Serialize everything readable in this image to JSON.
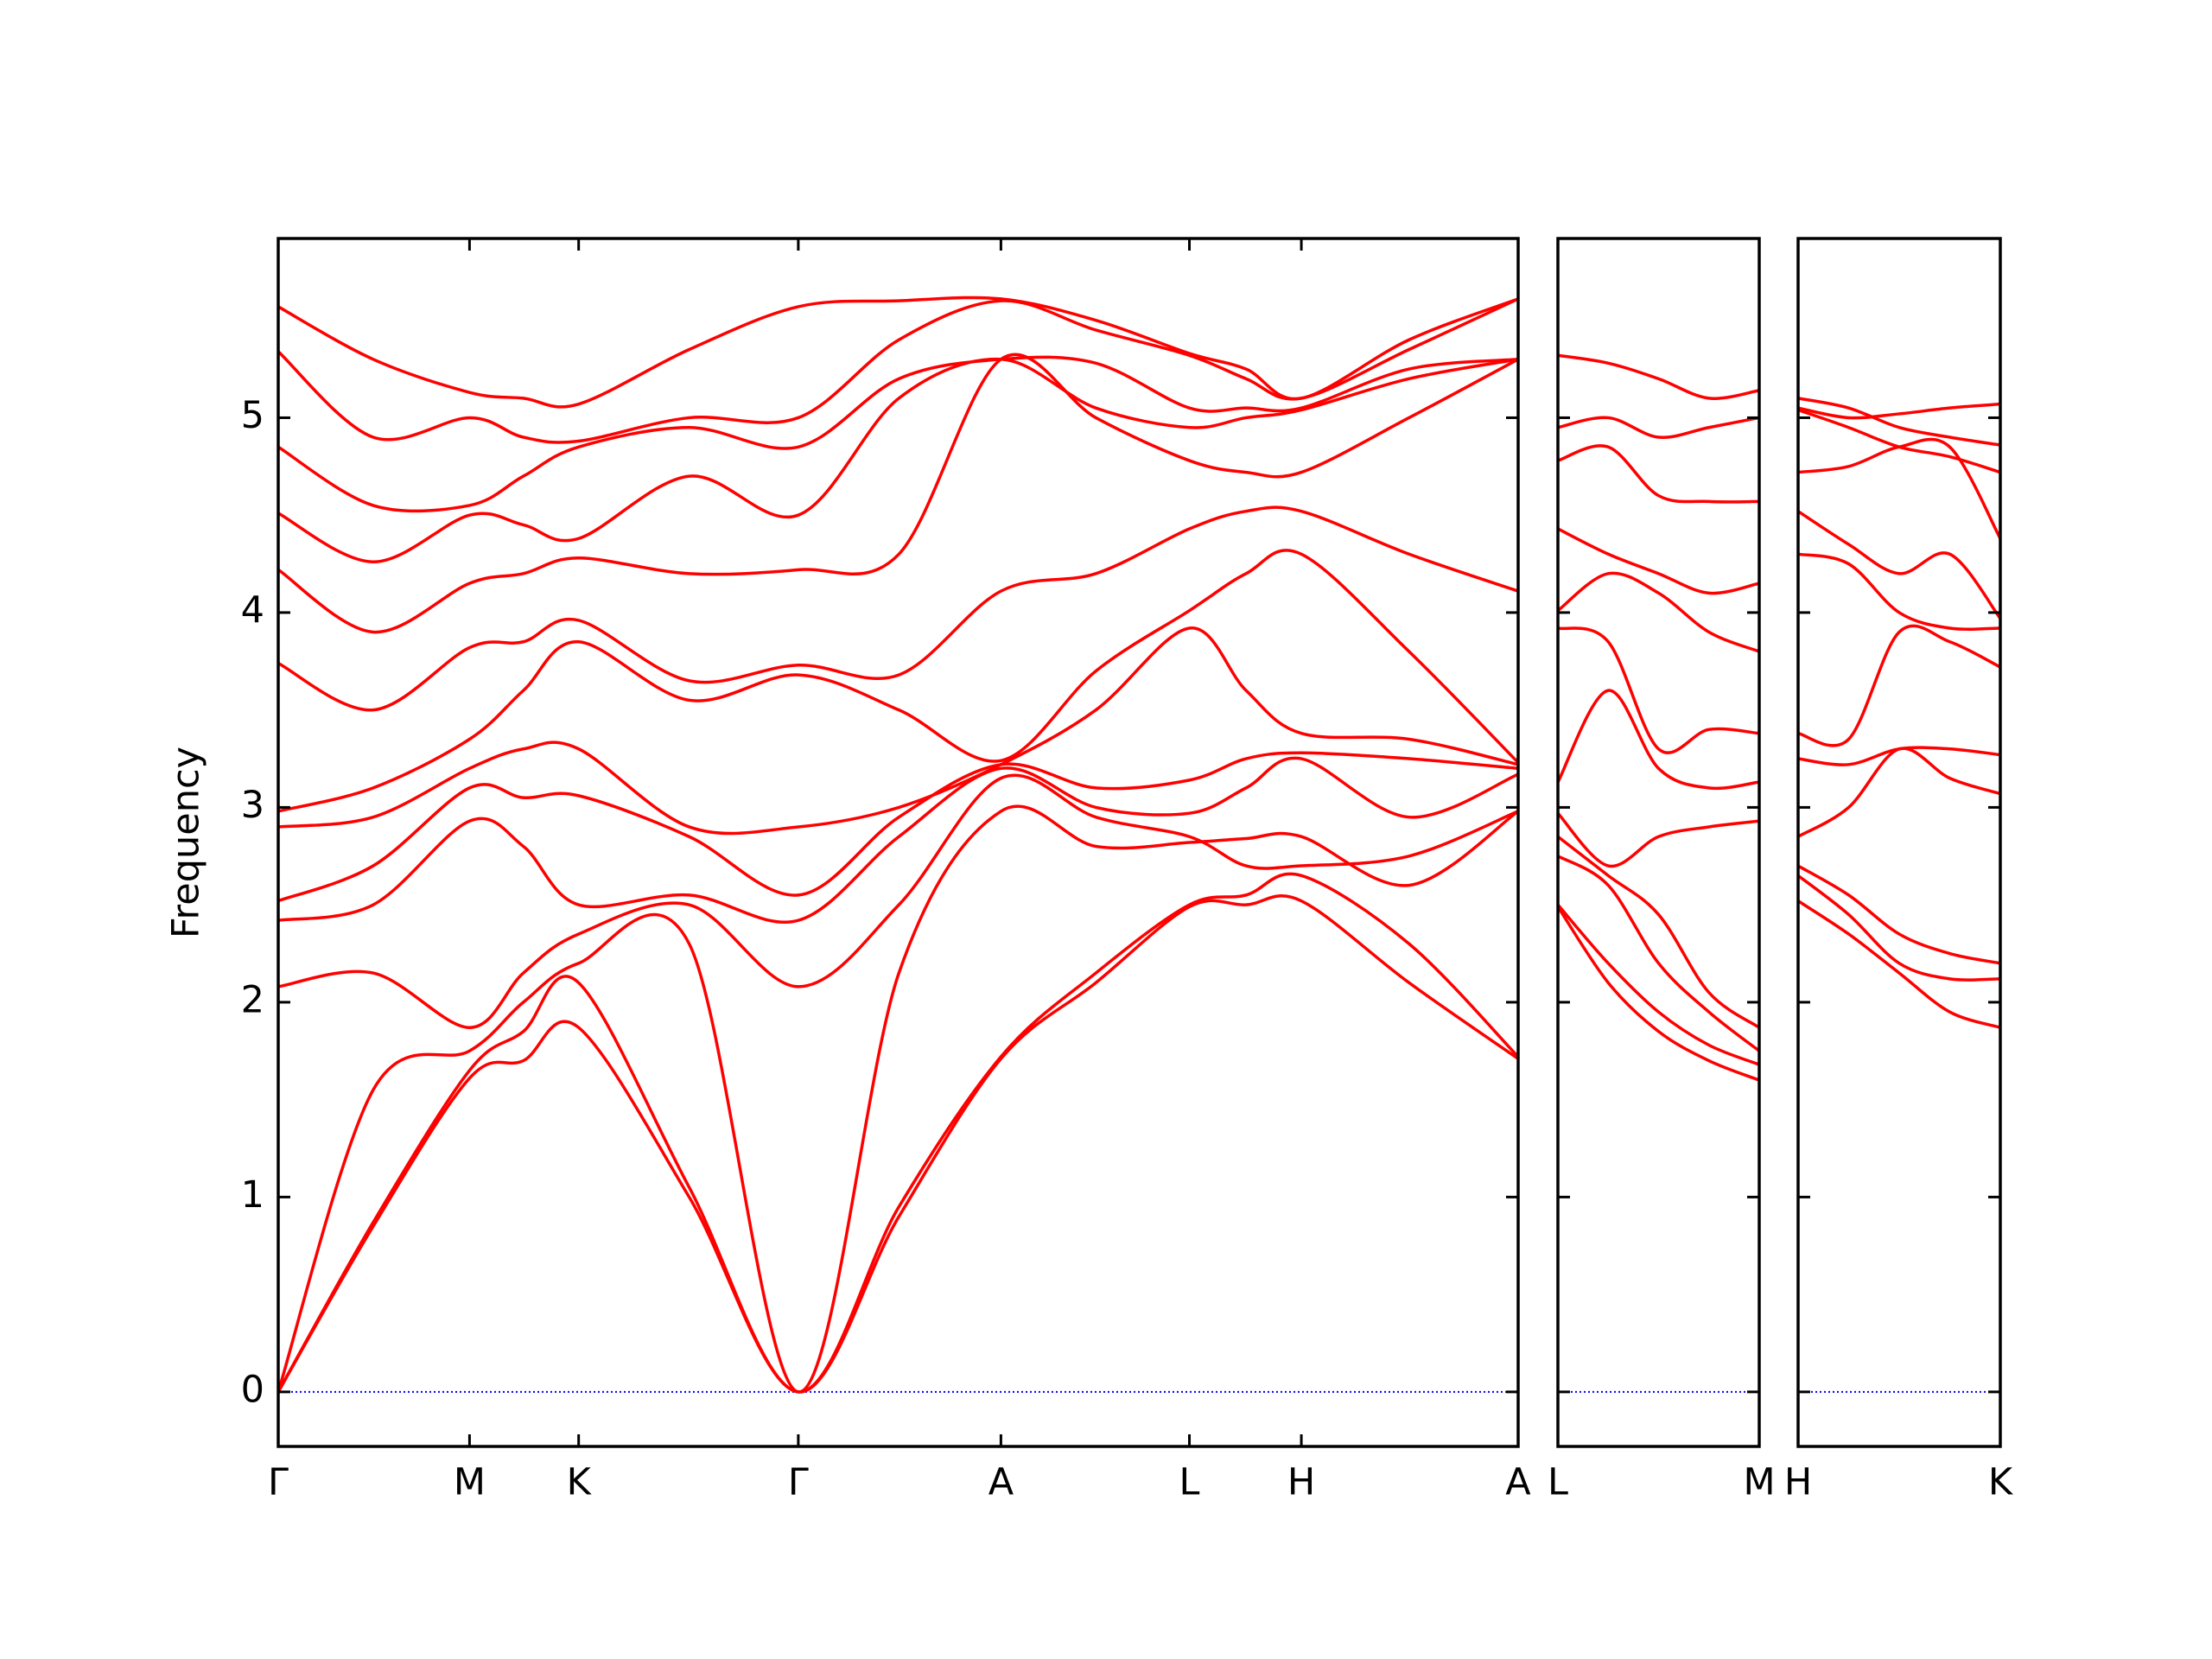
{
  "chart_data": [
    {
      "type": "line",
      "ylabel": "Frequency",
      "color": "#ff0000",
      "hline": 0,
      "hline_color": "#0000ff",
      "xlim": [
        0,
        8.75
      ],
      "ylim": [
        -0.28,
        5.92
      ],
      "yticks": [
        0,
        1,
        2,
        3,
        4,
        5
      ],
      "xticks": [
        {
          "value": 0,
          "label": "Γ"
        },
        {
          "value": 1.35,
          "label": "M"
        },
        {
          "value": 2.12,
          "label": "K"
        },
        {
          "value": 3.67,
          "label": "Γ"
        },
        {
          "value": 5.1,
          "label": "A"
        },
        {
          "value": 6.43,
          "label": "L"
        },
        {
          "value": 7.22,
          "label": "H"
        },
        {
          "value": 8.75,
          "label": "A"
        }
      ],
      "x": [
        0,
        0.67,
        1.35,
        1.73,
        2.12,
        2.9,
        3.67,
        4.38,
        5.1,
        5.77,
        6.43,
        6.83,
        7.22,
        7.98,
        8.75
      ],
      "series": [
        {
          "values": [
            0,
            0.85,
            1.61,
            1.7,
            1.87,
            1.0,
            0,
            0.9,
            1.71,
            2.1,
            2.49,
            2.5,
            2.52,
            2.1,
            1.71
          ]
        },
        {
          "values": [
            0,
            0.87,
            1.65,
            1.85,
            2.1,
            1.05,
            0,
            0.95,
            1.72,
            2.15,
            2.5,
            2.55,
            2.65,
            2.3,
            1.72
          ]
        },
        {
          "values": [
            0,
            1.55,
            1.75,
            2.0,
            2.2,
            2.3,
            0,
            2.15,
            2.98,
            2.8,
            2.82,
            2.84,
            2.85,
            2.6,
            2.98
          ]
        },
        {
          "values": [
            2.08,
            2.15,
            1.87,
            2.15,
            2.35,
            2.5,
            2.08,
            2.5,
            3.15,
            2.95,
            2.85,
            2.7,
            2.7,
            2.75,
            2.98
          ]
        },
        {
          "values": [
            2.42,
            2.5,
            2.93,
            2.8,
            2.5,
            2.55,
            2.42,
            2.85,
            3.2,
            3.0,
            2.97,
            3.1,
            3.25,
            2.95,
            3.17
          ]
        },
        {
          "values": [
            2.52,
            2.7,
            3.1,
            3.05,
            3.06,
            2.85,
            2.55,
            2.95,
            3.22,
            3.1,
            3.14,
            3.25,
            3.28,
            3.25,
            3.2
          ]
        },
        {
          "values": [
            2.9,
            2.95,
            3.2,
            3.3,
            3.3,
            2.9,
            2.9,
            3.0,
            3.22,
            3.5,
            3.92,
            3.6,
            3.38,
            3.35,
            3.22
          ]
        },
        {
          "values": [
            2.98,
            3.1,
            3.35,
            3.6,
            3.85,
            3.55,
            3.68,
            3.5,
            3.24,
            3.7,
            4.01,
            4.2,
            4.3,
            3.8,
            3.23
          ]
        },
        {
          "values": [
            3.74,
            3.5,
            3.82,
            3.85,
            3.96,
            3.65,
            3.73,
            3.68,
            4.11,
            4.2,
            4.43,
            4.52,
            4.52,
            4.3,
            4.11
          ]
        },
        {
          "values": [
            4.22,
            3.9,
            4.15,
            4.2,
            4.28,
            4.2,
            4.22,
            4.3,
            5.3,
            5.0,
            4.78,
            4.72,
            4.72,
            5.0,
            5.3
          ]
        },
        {
          "values": [
            4.51,
            4.26,
            4.5,
            4.45,
            4.38,
            4.7,
            4.5,
            5.1,
            5.3,
            5.05,
            4.95,
            5.0,
            5.04,
            5.2,
            5.3
          ]
        },
        {
          "values": [
            4.85,
            4.55,
            4.55,
            4.7,
            4.85,
            4.95,
            4.85,
            5.2,
            5.3,
            5.28,
            5.05,
            5.05,
            5.05,
            5.25,
            5.3
          ]
        },
        {
          "values": [
            5.34,
            4.9,
            5.0,
            4.9,
            4.88,
            5.0,
            5.0,
            5.4,
            5.6,
            5.45,
            5.32,
            5.2,
            5.1,
            5.35,
            5.61
          ]
        },
        {
          "values": [
            5.57,
            5.3,
            5.13,
            5.1,
            5.07,
            5.35,
            5.57,
            5.6,
            5.61,
            5.5,
            5.33,
            5.25,
            5.1,
            5.4,
            5.61
          ]
        }
      ]
    },
    {
      "type": "line",
      "color": "#ff0000",
      "hline": 0,
      "hline_color": "#0000ff",
      "xlim": [
        0,
        1.42
      ],
      "xticks": [
        {
          "value": 0,
          "label": "L"
        },
        {
          "value": 1.42,
          "label": "M"
        }
      ],
      "x": [
        0,
        0.355,
        0.71,
        1.065,
        1.42
      ],
      "series": [
        {
          "values": [
            2.49,
            2.1,
            1.85,
            1.7,
            1.6
          ]
        },
        {
          "values": [
            2.5,
            2.2,
            1.95,
            1.78,
            1.68
          ]
        },
        {
          "values": [
            2.75,
            2.6,
            2.2,
            1.95,
            1.75
          ]
        },
        {
          "values": [
            2.85,
            2.65,
            2.45,
            2.05,
            1.87
          ]
        },
        {
          "values": [
            2.97,
            2.7,
            2.85,
            2.9,
            2.93
          ]
        },
        {
          "values": [
            3.13,
            3.6,
            3.2,
            3.1,
            3.13
          ]
        },
        {
          "values": [
            3.92,
            3.85,
            3.3,
            3.4,
            3.38
          ]
        },
        {
          "values": [
            4.01,
            4.2,
            4.1,
            3.9,
            3.8
          ]
        },
        {
          "values": [
            4.43,
            4.3,
            4.2,
            4.1,
            4.15
          ]
        },
        {
          "values": [
            4.78,
            4.85,
            4.6,
            4.57,
            4.57
          ]
        },
        {
          "values": [
            4.95,
            5.0,
            4.9,
            4.95,
            5.0
          ]
        },
        {
          "values": [
            5.32,
            5.28,
            5.2,
            5.1,
            5.14
          ]
        }
      ]
    },
    {
      "type": "line",
      "color": "#ff0000",
      "hline": 0,
      "hline_color": "#0000ff",
      "xlim": [
        0,
        1.43
      ],
      "xticks": [
        {
          "value": 0,
          "label": "H"
        },
        {
          "value": 1.43,
          "label": "K"
        }
      ],
      "x": [
        0,
        0.3575,
        0.715,
        1.0725,
        1.43
      ],
      "series": [
        {
          "values": [
            2.52,
            2.35,
            2.15,
            1.95,
            1.87
          ]
        },
        {
          "values": [
            2.65,
            2.45,
            2.2,
            2.12,
            2.12
          ]
        },
        {
          "values": [
            2.7,
            2.55,
            2.35,
            2.25,
            2.2
          ]
        },
        {
          "values": [
            2.85,
            3.0,
            3.3,
            3.15,
            3.07
          ]
        },
        {
          "values": [
            3.25,
            3.22,
            3.3,
            3.3,
            3.27
          ]
        },
        {
          "values": [
            3.38,
            3.35,
            3.9,
            3.85,
            3.72
          ]
        },
        {
          "values": [
            4.3,
            4.25,
            4.0,
            3.92,
            3.92
          ]
        },
        {
          "values": [
            4.52,
            4.35,
            4.2,
            4.3,
            3.97
          ]
        },
        {
          "values": [
            4.72,
            4.75,
            4.85,
            4.85,
            4.38
          ]
        },
        {
          "values": [
            5.04,
            4.95,
            4.85,
            4.8,
            4.72
          ]
        },
        {
          "values": [
            5.1,
            5.05,
            4.95,
            4.9,
            4.86
          ]
        },
        {
          "values": [
            5.05,
            5.0,
            5.02,
            5.05,
            5.07
          ]
        }
      ]
    }
  ]
}
